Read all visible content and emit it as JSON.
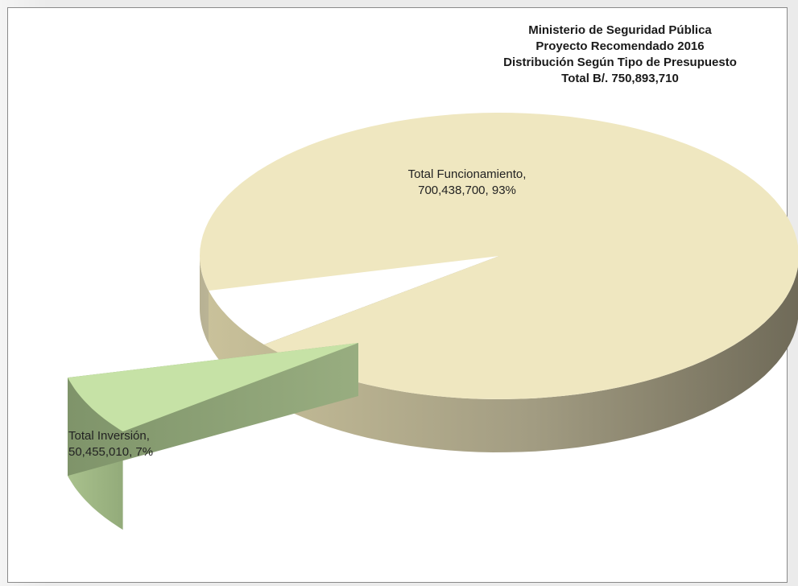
{
  "chart_data": {
    "type": "pie",
    "title_lines": [
      "Ministerio de Seguridad Pública",
      "Proyecto Recomendado 2016",
      "Distribución Según Tipo de Presupuesto",
      "Total B/. 750,893,710"
    ],
    "legend": "none",
    "three_d": true,
    "slices": [
      {
        "name": "Total Funcionamiento",
        "value": 700438700,
        "percent": 93,
        "value_label": "700,438,700, 93%",
        "color": "#efe7c0",
        "exploded": false
      },
      {
        "name": "Total Inversión",
        "value": 50455010,
        "percent": 7,
        "value_label": "50,455,010, 7%",
        "color": "#c6e2a6",
        "exploded": true
      }
    ]
  }
}
